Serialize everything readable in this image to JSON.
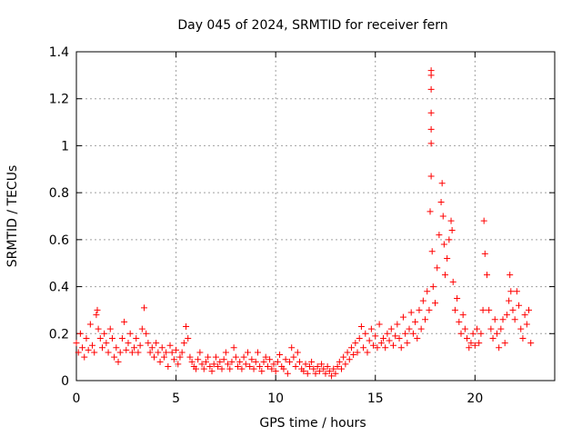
{
  "chart_data": {
    "type": "scatter",
    "title": "Day 045 of 2024, SRMTID for receiver fern",
    "xlabel": "GPS time / hours",
    "ylabel": "SRMTID / TECUs",
    "xlim": [
      0,
      24
    ],
    "ylim": [
      0,
      1.4
    ],
    "xticks": [
      0,
      5,
      10,
      15,
      20
    ],
    "xtick_labels": [
      "0",
      "5",
      "10",
      "15",
      "20"
    ],
    "yticks": [
      0,
      0.2,
      0.4,
      0.6,
      0.8,
      1,
      1.2,
      1.4
    ],
    "ytick_labels": [
      "0",
      "0.2",
      "0.4",
      "0.6",
      "0.8",
      "1",
      "1.2",
      "1.4"
    ],
    "grid": true,
    "marker": "+",
    "color": "#ff0000",
    "series": [
      {
        "name": "SRMTID",
        "points": [
          [
            0.0,
            0.16
          ],
          [
            0.1,
            0.12
          ],
          [
            0.2,
            0.2
          ],
          [
            0.3,
            0.14
          ],
          [
            0.4,
            0.1
          ],
          [
            0.5,
            0.18
          ],
          [
            0.6,
            0.13
          ],
          [
            0.7,
            0.24
          ],
          [
            0.8,
            0.15
          ],
          [
            0.9,
            0.12
          ],
          [
            1.0,
            0.28
          ],
          [
            1.05,
            0.3
          ],
          [
            1.1,
            0.22
          ],
          [
            1.2,
            0.18
          ],
          [
            1.3,
            0.14
          ],
          [
            1.4,
            0.2
          ],
          [
            1.5,
            0.16
          ],
          [
            1.6,
            0.12
          ],
          [
            1.7,
            0.22
          ],
          [
            1.8,
            0.18
          ],
          [
            1.9,
            0.1
          ],
          [
            2.0,
            0.14
          ],
          [
            2.1,
            0.08
          ],
          [
            2.2,
            0.12
          ],
          [
            2.3,
            0.18
          ],
          [
            2.4,
            0.25
          ],
          [
            2.5,
            0.13
          ],
          [
            2.6,
            0.16
          ],
          [
            2.7,
            0.2
          ],
          [
            2.8,
            0.12
          ],
          [
            2.9,
            0.14
          ],
          [
            3.0,
            0.18
          ],
          [
            3.1,
            0.12
          ],
          [
            3.2,
            0.15
          ],
          [
            3.3,
            0.22
          ],
          [
            3.4,
            0.31
          ],
          [
            3.5,
            0.2
          ],
          [
            3.6,
            0.16
          ],
          [
            3.7,
            0.12
          ],
          [
            3.8,
            0.14
          ],
          [
            3.9,
            0.1
          ],
          [
            4.0,
            0.16
          ],
          [
            4.1,
            0.12
          ],
          [
            4.2,
            0.08
          ],
          [
            4.3,
            0.14
          ],
          [
            4.4,
            0.1
          ],
          [
            4.5,
            0.12
          ],
          [
            4.6,
            0.06
          ],
          [
            4.7,
            0.15
          ],
          [
            4.8,
            0.12
          ],
          [
            4.9,
            0.09
          ],
          [
            5.0,
            0.13
          ],
          [
            5.1,
            0.07
          ],
          [
            5.2,
            0.1
          ],
          [
            5.3,
            0.12
          ],
          [
            5.4,
            0.16
          ],
          [
            5.5,
            0.23
          ],
          [
            5.6,
            0.18
          ],
          [
            5.7,
            0.1
          ],
          [
            5.8,
            0.08
          ],
          [
            5.9,
            0.06
          ],
          [
            6.0,
            0.05
          ],
          [
            6.1,
            0.09
          ],
          [
            6.2,
            0.12
          ],
          [
            6.3,
            0.07
          ],
          [
            6.4,
            0.05
          ],
          [
            6.5,
            0.08
          ],
          [
            6.6,
            0.1
          ],
          [
            6.7,
            0.06
          ],
          [
            6.8,
            0.04
          ],
          [
            6.9,
            0.07
          ],
          [
            7.0,
            0.1
          ],
          [
            7.1,
            0.06
          ],
          [
            7.2,
            0.08
          ],
          [
            7.3,
            0.05
          ],
          [
            7.4,
            0.09
          ],
          [
            7.5,
            0.12
          ],
          [
            7.6,
            0.07
          ],
          [
            7.7,
            0.05
          ],
          [
            7.8,
            0.08
          ],
          [
            7.9,
            0.14
          ],
          [
            8.0,
            0.1
          ],
          [
            8.1,
            0.06
          ],
          [
            8.2,
            0.08
          ],
          [
            8.3,
            0.05
          ],
          [
            8.4,
            0.1
          ],
          [
            8.5,
            0.07
          ],
          [
            8.6,
            0.12
          ],
          [
            8.7,
            0.06
          ],
          [
            8.8,
            0.09
          ],
          [
            8.9,
            0.05
          ],
          [
            9.0,
            0.08
          ],
          [
            9.1,
            0.12
          ],
          [
            9.2,
            0.06
          ],
          [
            9.3,
            0.04
          ],
          [
            9.4,
            0.08
          ],
          [
            9.5,
            0.1
          ],
          [
            9.6,
            0.06
          ],
          [
            9.7,
            0.09
          ],
          [
            9.8,
            0.05
          ],
          [
            9.9,
            0.07
          ],
          [
            10.0,
            0.04
          ],
          [
            10.1,
            0.08
          ],
          [
            10.2,
            0.11
          ],
          [
            10.3,
            0.06
          ],
          [
            10.4,
            0.05
          ],
          [
            10.5,
            0.09
          ],
          [
            10.6,
            0.03
          ],
          [
            10.7,
            0.08
          ],
          [
            10.8,
            0.14
          ],
          [
            10.9,
            0.1
          ],
          [
            11.0,
            0.06
          ],
          [
            11.1,
            0.12
          ],
          [
            11.2,
            0.08
          ],
          [
            11.3,
            0.05
          ],
          [
            11.4,
            0.04
          ],
          [
            11.5,
            0.07
          ],
          [
            11.6,
            0.03
          ],
          [
            11.7,
            0.06
          ],
          [
            11.8,
            0.08
          ],
          [
            11.9,
            0.05
          ],
          [
            12.0,
            0.03
          ],
          [
            12.1,
            0.06
          ],
          [
            12.2,
            0.04
          ],
          [
            12.3,
            0.07
          ],
          [
            12.4,
            0.05
          ],
          [
            12.5,
            0.03
          ],
          [
            12.6,
            0.06
          ],
          [
            12.7,
            0.04
          ],
          [
            12.8,
            0.02
          ],
          [
            12.9,
            0.05
          ],
          [
            13.0,
            0.03
          ],
          [
            13.1,
            0.06
          ],
          [
            13.2,
            0.08
          ],
          [
            13.3,
            0.05
          ],
          [
            13.4,
            0.1
          ],
          [
            13.5,
            0.07
          ],
          [
            13.6,
            0.12
          ],
          [
            13.7,
            0.09
          ],
          [
            13.8,
            0.14
          ],
          [
            13.9,
            0.11
          ],
          [
            14.0,
            0.16
          ],
          [
            14.1,
            0.12
          ],
          [
            14.2,
            0.18
          ],
          [
            14.3,
            0.23
          ],
          [
            14.4,
            0.14
          ],
          [
            14.5,
            0.2
          ],
          [
            14.6,
            0.12
          ],
          [
            14.7,
            0.17
          ],
          [
            14.8,
            0.22
          ],
          [
            14.9,
            0.15
          ],
          [
            15.0,
            0.19
          ],
          [
            15.1,
            0.14
          ],
          [
            15.2,
            0.24
          ],
          [
            15.3,
            0.16
          ],
          [
            15.4,
            0.18
          ],
          [
            15.5,
            0.14
          ],
          [
            15.6,
            0.2
          ],
          [
            15.7,
            0.17
          ],
          [
            15.8,
            0.22
          ],
          [
            15.9,
            0.15
          ],
          [
            16.0,
            0.19
          ],
          [
            16.1,
            0.24
          ],
          [
            16.2,
            0.18
          ],
          [
            16.3,
            0.14
          ],
          [
            16.4,
            0.27
          ],
          [
            16.5,
            0.2
          ],
          [
            16.6,
            0.16
          ],
          [
            16.7,
            0.22
          ],
          [
            16.8,
            0.29
          ],
          [
            16.9,
            0.2
          ],
          [
            17.0,
            0.25
          ],
          [
            17.1,
            0.18
          ],
          [
            17.2,
            0.3
          ],
          [
            17.3,
            0.22
          ],
          [
            17.4,
            0.34
          ],
          [
            17.5,
            0.26
          ],
          [
            17.6,
            0.38
          ],
          [
            17.7,
            0.3
          ],
          [
            17.75,
            0.72
          ],
          [
            17.8,
            1.32
          ],
          [
            17.8,
            1.3
          ],
          [
            17.8,
            1.24
          ],
          [
            17.8,
            1.14
          ],
          [
            17.8,
            1.07
          ],
          [
            17.8,
            1.01
          ],
          [
            17.8,
            0.87
          ],
          [
            17.85,
            0.55
          ],
          [
            17.9,
            0.4
          ],
          [
            18.0,
            0.33
          ],
          [
            18.1,
            0.48
          ],
          [
            18.2,
            0.62
          ],
          [
            18.3,
            0.76
          ],
          [
            18.35,
            0.84
          ],
          [
            18.4,
            0.7
          ],
          [
            18.45,
            0.58
          ],
          [
            18.5,
            0.45
          ],
          [
            18.6,
            0.52
          ],
          [
            18.7,
            0.6
          ],
          [
            18.8,
            0.68
          ],
          [
            18.85,
            0.64
          ],
          [
            18.9,
            0.42
          ],
          [
            19.0,
            0.3
          ],
          [
            19.1,
            0.35
          ],
          [
            19.2,
            0.25
          ],
          [
            19.3,
            0.2
          ],
          [
            19.4,
            0.28
          ],
          [
            19.5,
            0.22
          ],
          [
            19.6,
            0.18
          ],
          [
            19.7,
            0.14
          ],
          [
            19.8,
            0.16
          ],
          [
            19.9,
            0.2
          ],
          [
            20.0,
            0.15
          ],
          [
            20.1,
            0.22
          ],
          [
            20.2,
            0.16
          ],
          [
            20.3,
            0.2
          ],
          [
            20.4,
            0.3
          ],
          [
            20.45,
            0.68
          ],
          [
            20.5,
            0.54
          ],
          [
            20.6,
            0.45
          ],
          [
            20.7,
            0.3
          ],
          [
            20.8,
            0.22
          ],
          [
            20.9,
            0.18
          ],
          [
            21.0,
            0.26
          ],
          [
            21.1,
            0.2
          ],
          [
            21.2,
            0.14
          ],
          [
            21.3,
            0.22
          ],
          [
            21.4,
            0.26
          ],
          [
            21.5,
            0.16
          ],
          [
            21.6,
            0.28
          ],
          [
            21.7,
            0.34
          ],
          [
            21.75,
            0.45
          ],
          [
            21.8,
            0.38
          ],
          [
            21.9,
            0.3
          ],
          [
            22.0,
            0.26
          ],
          [
            22.1,
            0.38
          ],
          [
            22.2,
            0.32
          ],
          [
            22.3,
            0.22
          ],
          [
            22.4,
            0.18
          ],
          [
            22.5,
            0.28
          ],
          [
            22.6,
            0.24
          ],
          [
            22.7,
            0.3
          ],
          [
            22.8,
            0.16
          ]
        ]
      }
    ]
  }
}
